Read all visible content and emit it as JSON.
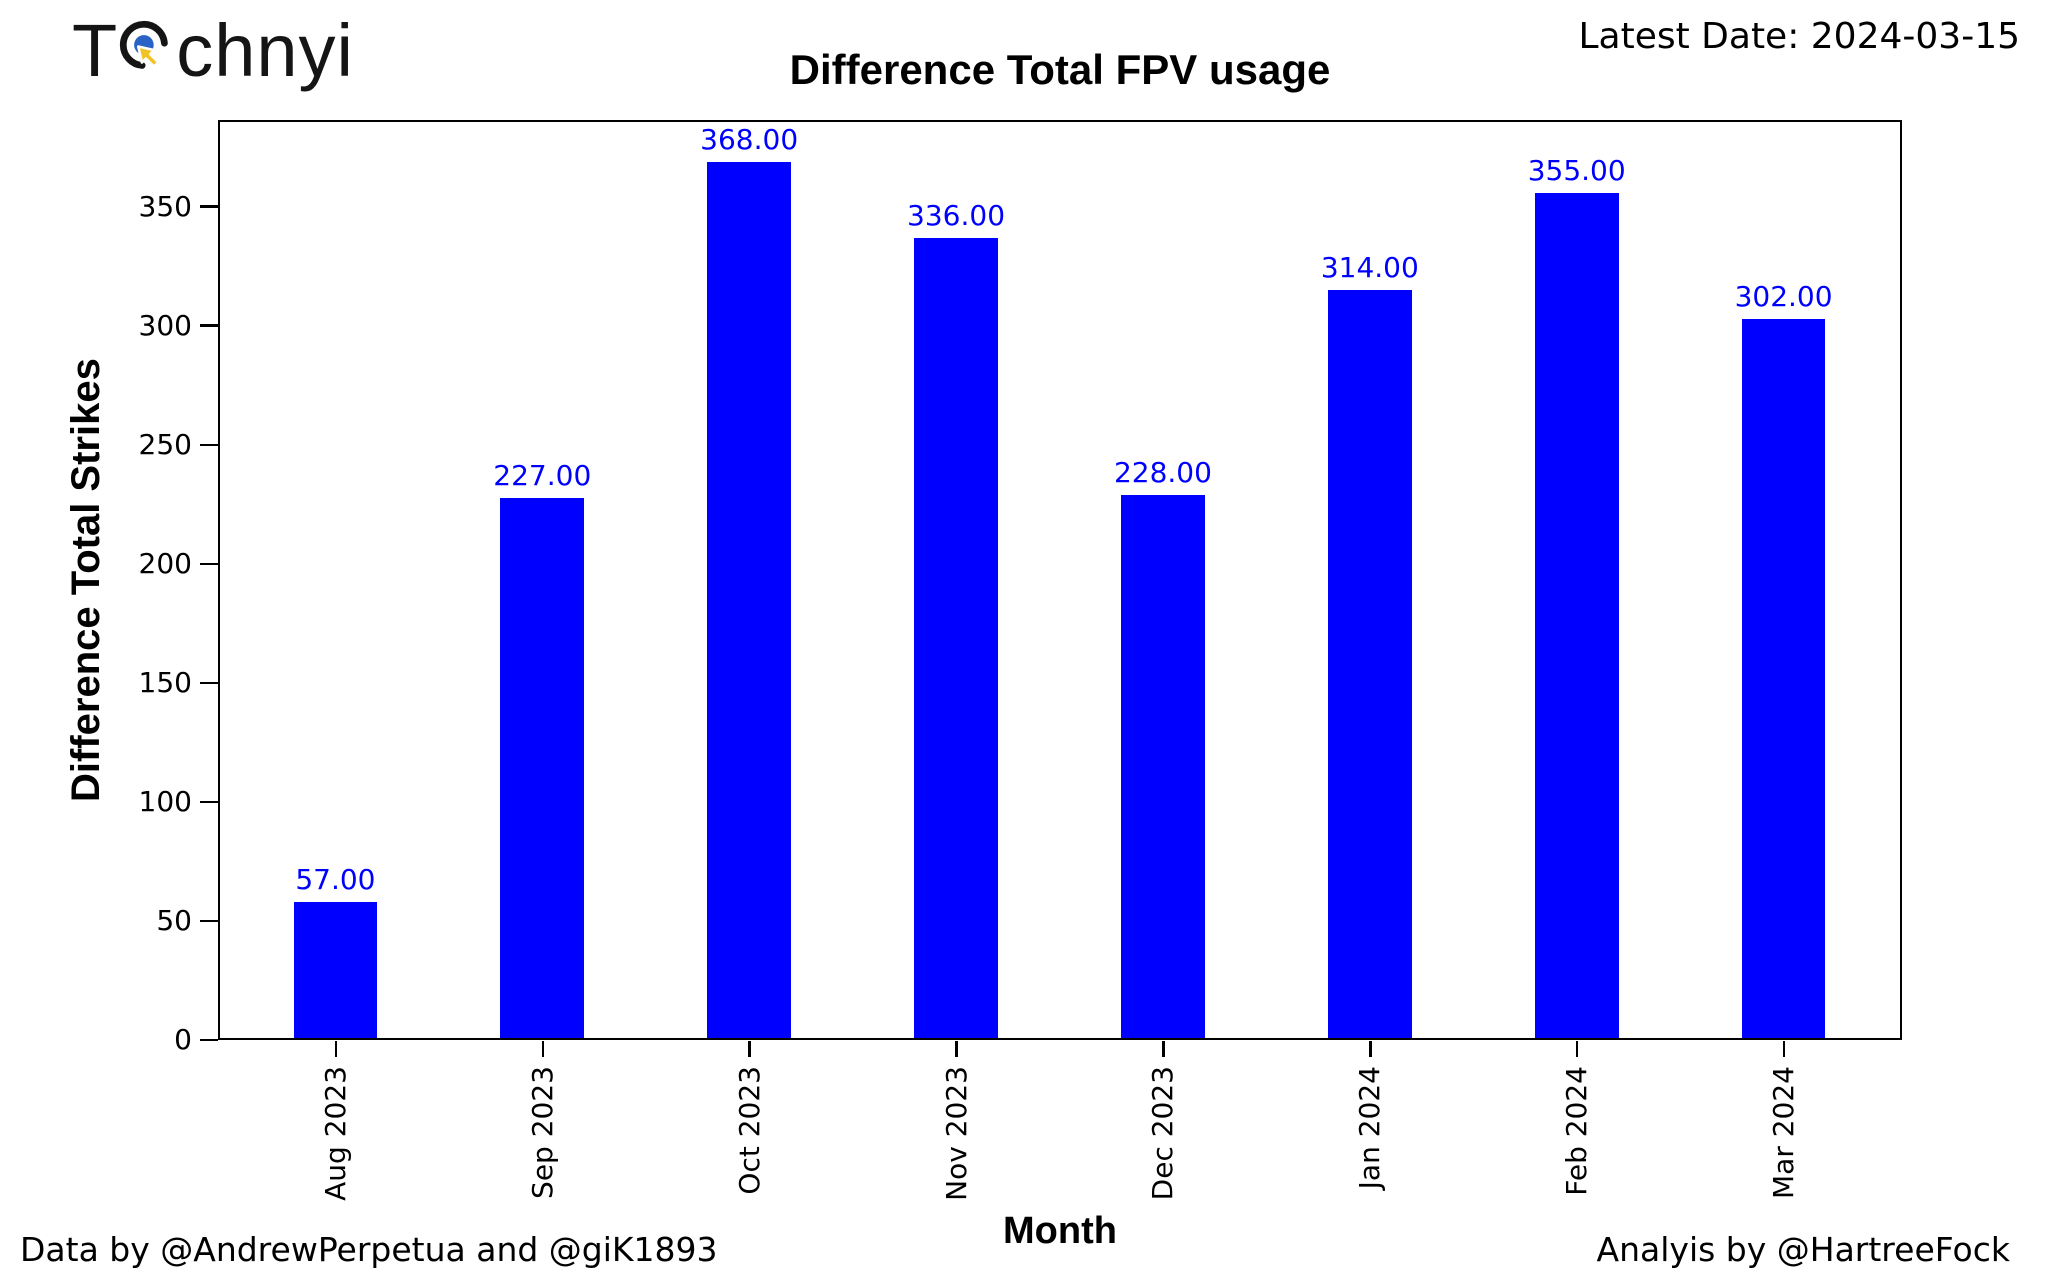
{
  "logo": {
    "text_t": "T",
    "text_rest": "chnyi",
    "icon": "target-cursor-icon",
    "colors": {
      "ring": "#151515",
      "dot": "#2B62C5",
      "cursor": "#F2C329"
    }
  },
  "header": {
    "latest_date": "Latest Date: 2024-03-15"
  },
  "footer": {
    "credit_left": "Data by @AndrewPerpetua and @giK1893",
    "credit_right": "Analyis by @HartreeFock"
  },
  "chart_data": {
    "type": "bar",
    "title": "Difference Total FPV usage",
    "xlabel": "Month",
    "ylabel": "Difference Total Strikes",
    "categories": [
      "Aug 2023",
      "Sep 2023",
      "Oct 2023",
      "Nov 2023",
      "Dec 2023",
      "Jan 2024",
      "Feb 2024",
      "Mar 2024"
    ],
    "values": [
      57,
      227,
      368,
      336,
      228,
      314,
      355,
      302
    ],
    "value_labels": [
      "57.00",
      "227.00",
      "368.00",
      "336.00",
      "228.00",
      "314.00",
      "355.00",
      "302.00"
    ],
    "bar_color": "#0000FF",
    "value_label_color": "#0000FF",
    "ylim": [
      0,
      386.4
    ],
    "yticks": [
      0,
      50,
      100,
      150,
      200,
      250,
      300,
      350
    ],
    "x_tick_rotation": 90,
    "grid": false,
    "legend_position": "none"
  }
}
